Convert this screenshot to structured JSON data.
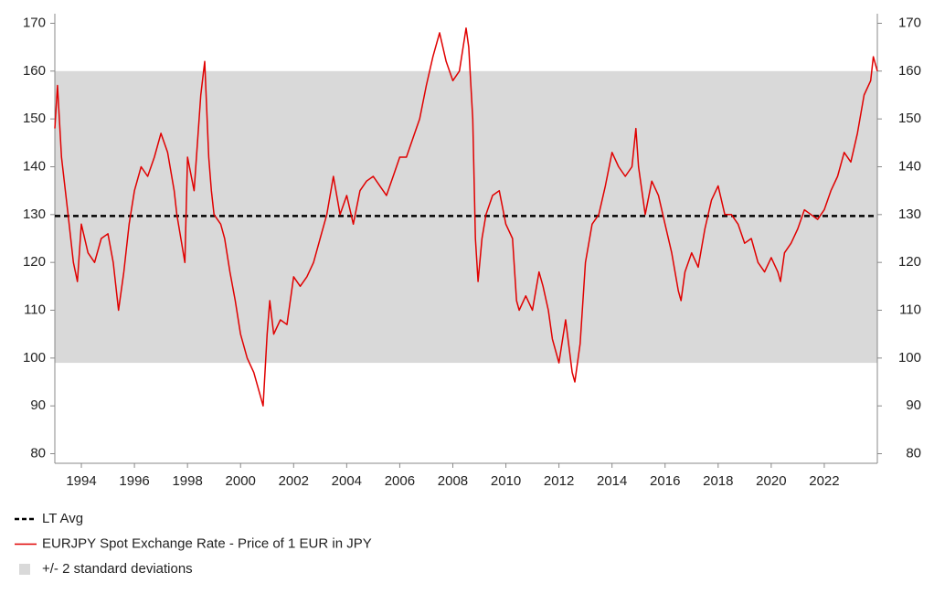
{
  "chart_data": {
    "type": "line",
    "series": [
      {
        "name": "EURJPY Spot Exchange Rate - Price of 1 EUR in JPY",
        "color": "#e00000",
        "x": [
          1993.0,
          1993.1,
          1993.25,
          1993.5,
          1993.7,
          1993.85,
          1994.0,
          1994.25,
          1994.5,
          1994.75,
          1995.0,
          1995.2,
          1995.4,
          1995.6,
          1995.8,
          1996.0,
          1996.25,
          1996.5,
          1996.75,
          1997.0,
          1997.25,
          1997.5,
          1997.6,
          1997.75,
          1997.9,
          1998.0,
          1998.25,
          1998.5,
          1998.65,
          1998.8,
          1998.9,
          1999.0,
          1999.25,
          1999.4,
          1999.6,
          1999.8,
          2000.0,
          2000.25,
          2000.5,
          2000.75,
          2000.85,
          2001.0,
          2001.1,
          2001.25,
          2001.5,
          2001.75,
          2002.0,
          2002.25,
          2002.5,
          2002.75,
          2003.0,
          2003.25,
          2003.5,
          2003.75,
          2004.0,
          2004.25,
          2004.5,
          2004.75,
          2005.0,
          2005.25,
          2005.5,
          2005.75,
          2006.0,
          2006.25,
          2006.5,
          2006.75,
          2007.0,
          2007.25,
          2007.5,
          2007.75,
          2008.0,
          2008.25,
          2008.5,
          2008.6,
          2008.75,
          2008.85,
          2008.95,
          2009.1,
          2009.25,
          2009.5,
          2009.75,
          2010.0,
          2010.25,
          2010.4,
          2010.5,
          2010.75,
          2011.0,
          2011.25,
          2011.4,
          2011.6,
          2011.75,
          2012.0,
          2012.25,
          2012.5,
          2012.6,
          2012.8,
          2013.0,
          2013.25,
          2013.5,
          2013.75,
          2014.0,
          2014.25,
          2014.5,
          2014.75,
          2014.9,
          2015.0,
          2015.25,
          2015.5,
          2015.75,
          2016.0,
          2016.25,
          2016.5,
          2016.6,
          2016.75,
          2017.0,
          2017.25,
          2017.5,
          2017.75,
          2018.0,
          2018.25,
          2018.5,
          2018.75,
          2019.0,
          2019.25,
          2019.5,
          2019.75,
          2020.0,
          2020.25,
          2020.35,
          2020.5,
          2020.75,
          2021.0,
          2021.25,
          2021.5,
          2021.75,
          2022.0,
          2022.25,
          2022.5,
          2022.75,
          2023.0,
          2023.25,
          2023.5,
          2023.75,
          2023.85,
          2024.0
        ],
        "values": [
          148,
          157,
          142,
          130,
          120,
          116,
          128,
          122,
          120,
          125,
          126,
          120,
          110,
          118,
          128,
          135,
          140,
          138,
          142,
          147,
          143,
          135,
          130,
          125,
          120,
          142,
          135,
          155,
          162,
          142,
          135,
          130,
          128,
          125,
          118,
          112,
          105,
          100,
          97,
          92,
          90,
          105,
          112,
          105,
          108,
          107,
          117,
          115,
          117,
          120,
          125,
          130,
          138,
          130,
          134,
          128,
          135,
          137,
          138,
          136,
          134,
          138,
          142,
          142,
          146,
          150,
          157,
          163,
          168,
          162,
          158,
          160,
          169,
          165,
          150,
          125,
          116,
          125,
          130,
          134,
          135,
          128,
          125,
          112,
          110,
          113,
          110,
          118,
          115,
          110,
          104,
          99,
          108,
          97,
          95,
          103,
          120,
          128,
          130,
          136,
          143,
          140,
          138,
          140,
          148,
          140,
          130,
          137,
          134,
          128,
          122,
          114,
          112,
          118,
          122,
          119,
          127,
          133,
          136,
          130,
          130,
          128,
          124,
          125,
          120,
          118,
          121,
          118,
          116,
          122,
          124,
          127,
          131,
          130,
          129,
          131,
          135,
          138,
          143,
          141,
          147,
          155,
          158,
          163,
          160
        ]
      }
    ],
    "reference_lines": [
      {
        "name": "LT Avg",
        "value": 129.7,
        "color": "#000000"
      }
    ],
    "bands": [
      {
        "name": "+/- 2 standard deviations",
        "lower": 99,
        "upper": 160,
        "color": "#d9d9d9"
      }
    ],
    "xlim": [
      1993,
      2024
    ],
    "xticks": [
      1994,
      1996,
      1998,
      2000,
      2002,
      2004,
      2006,
      2008,
      2010,
      2012,
      2014,
      2016,
      2018,
      2020,
      2022
    ],
    "ylim": [
      78,
      172
    ],
    "yticks": [
      80,
      90,
      100,
      110,
      120,
      130,
      140,
      150,
      160,
      170
    ],
    "y2lim": [
      78,
      172
    ],
    "y2ticks": [
      80,
      90,
      100,
      110,
      120,
      130,
      140,
      150,
      160,
      170
    ]
  }
}
